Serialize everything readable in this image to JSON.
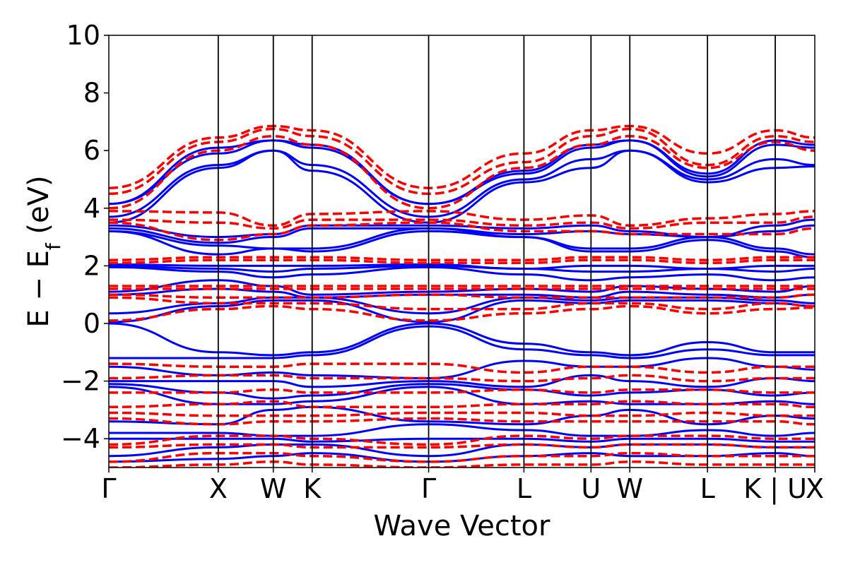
{
  "chart_data": {
    "type": "line",
    "title": "",
    "xlabel": "Wave Vector",
    "ylabel": {
      "prefix": "E − E",
      "subscript": "f",
      "suffix": " (eV)"
    },
    "ylim": [
      -5,
      10
    ],
    "yticks": [
      {
        "value": -4,
        "label": "−4"
      },
      {
        "value": -2,
        "label": "−2"
      },
      {
        "value": 0,
        "label": "0"
      },
      {
        "value": 2,
        "label": "2"
      },
      {
        "value": 4,
        "label": "4"
      },
      {
        "value": 6,
        "label": "6"
      },
      {
        "value": 8,
        "label": "8"
      },
      {
        "value": 10,
        "label": "10"
      }
    ],
    "xlim": [
      0,
      1
    ],
    "kpoints": [
      {
        "pos": 0.0,
        "label": "Γ"
      },
      {
        "pos": 0.155,
        "label": "X"
      },
      {
        "pos": 0.233,
        "label": "W"
      },
      {
        "pos": 0.288,
        "label": "K"
      },
      {
        "pos": 0.453,
        "label": "Γ"
      },
      {
        "pos": 0.588,
        "label": "L"
      },
      {
        "pos": 0.683,
        "label": "U"
      },
      {
        "pos": 0.738,
        "label": "W"
      },
      {
        "pos": 0.848,
        "label": "L"
      },
      {
        "pos": 0.944,
        "label": "K | U"
      },
      {
        "pos": 1.0,
        "label": "X"
      }
    ],
    "grid": false,
    "legend": "none",
    "series": [
      {
        "style": "solid",
        "color": "#0000ff",
        "bands": [
          [
            4.15,
            6.1,
            6.35,
            6.2,
            4.15,
            5.3,
            6.2,
            6.35,
            5.2,
            6.35,
            6.2
          ],
          [
            4.15,
            5.9,
            6.35,
            6.1,
            4.15,
            5.2,
            6.1,
            6.35,
            5.1,
            6.2,
            6.1
          ],
          [
            3.7,
            5.5,
            6.0,
            5.5,
            3.7,
            5.0,
            5.7,
            6.0,
            5.0,
            5.7,
            5.5
          ],
          [
            3.5,
            5.4,
            6.0,
            5.3,
            3.5,
            4.9,
            5.4,
            6.0,
            4.9,
            5.4,
            5.45
          ],
          [
            3.4,
            3.0,
            3.1,
            3.4,
            3.4,
            3.3,
            3.4,
            3.2,
            3.0,
            3.4,
            3.6
          ],
          [
            3.3,
            2.8,
            3.0,
            3.3,
            3.3,
            3.1,
            3.2,
            3.1,
            3.0,
            3.2,
            3.4
          ],
          [
            3.2,
            2.7,
            2.6,
            2.6,
            3.3,
            3.0,
            2.6,
            2.6,
            3.0,
            2.6,
            2.4
          ],
          [
            3.2,
            2.4,
            2.6,
            2.5,
            3.2,
            3.0,
            2.5,
            2.5,
            2.9,
            2.5,
            2.3
          ],
          [
            2.05,
            2.0,
            2.0,
            2.0,
            2.05,
            1.9,
            2.0,
            2.0,
            1.9,
            2.0,
            2.0
          ],
          [
            2.0,
            1.9,
            1.8,
            1.9,
            2.0,
            1.9,
            1.8,
            1.8,
            1.9,
            1.8,
            1.9
          ],
          [
            1.95,
            1.8,
            1.6,
            1.7,
            1.95,
            1.7,
            1.5,
            1.6,
            1.7,
            1.5,
            1.6
          ],
          [
            1.1,
            1.5,
            1.3,
            1.0,
            1.1,
            1.2,
            1.1,
            1.3,
            1.2,
            1.1,
            1.3
          ],
          [
            1.0,
            1.2,
            1.1,
            0.9,
            1.0,
            1.0,
            0.9,
            1.1,
            1.0,
            0.9,
            1.0
          ],
          [
            0.35,
            0.7,
            0.9,
            0.9,
            0.35,
            0.9,
            0.8,
            0.9,
            0.9,
            0.8,
            0.7
          ],
          [
            0.05,
            0.6,
            0.8,
            0.8,
            0.05,
            0.8,
            0.7,
            0.8,
            0.8,
            0.7,
            0.6
          ],
          [
            0.0,
            -1.0,
            -1.1,
            -1.0,
            0.0,
            -0.7,
            -1.0,
            -1.1,
            -0.65,
            -1.0,
            -1.0
          ],
          [
            -1.2,
            -1.2,
            -1.2,
            -1.1,
            -0.1,
            -0.9,
            -1.1,
            -1.2,
            -0.9,
            -1.1,
            -1.1
          ],
          [
            -1.5,
            -1.8,
            -1.7,
            -1.8,
            -1.9,
            -1.3,
            -1.5,
            -1.5,
            -1.2,
            -1.5,
            -1.6
          ],
          [
            -2.0,
            -2.0,
            -2.0,
            -2.2,
            -2.0,
            -2.2,
            -1.8,
            -2.0,
            -2.2,
            -1.9,
            -2.0
          ],
          [
            -2.1,
            -2.4,
            -2.6,
            -2.5,
            -2.1,
            -2.3,
            -2.5,
            -2.4,
            -2.3,
            -2.5,
            -2.4
          ],
          [
            -2.2,
            -2.8,
            -2.8,
            -2.7,
            -2.2,
            -2.8,
            -2.7,
            -2.8,
            -2.8,
            -2.7,
            -2.8
          ],
          [
            -3.4,
            -3.5,
            -3.0,
            -2.9,
            -3.4,
            -3.5,
            -3.2,
            -3.0,
            -3.5,
            -3.2,
            -3.3
          ],
          [
            -3.8,
            -3.8,
            -3.9,
            -3.9,
            -3.5,
            -3.7,
            -3.9,
            -3.9,
            -3.7,
            -3.9,
            -3.8
          ],
          [
            -4.0,
            -4.0,
            -4.0,
            -4.1,
            -4.0,
            -4.0,
            -4.1,
            -4.0,
            -4.0,
            -4.1,
            -4.1
          ],
          [
            -4.6,
            -4.3,
            -4.2,
            -4.2,
            -4.6,
            -4.2,
            -4.3,
            -4.2,
            -4.2,
            -4.3,
            -4.3
          ],
          [
            -4.8,
            -4.7,
            -4.6,
            -4.5,
            -4.8,
            -4.6,
            -4.5,
            -4.6,
            -4.6,
            -4.5,
            -4.6
          ]
        ]
      },
      {
        "style": "dashed",
        "color": "#ff0000",
        "bands": [
          [
            4.7,
            6.45,
            6.85,
            6.7,
            4.7,
            5.9,
            6.7,
            6.85,
            5.9,
            6.7,
            6.45
          ],
          [
            4.5,
            6.3,
            6.75,
            6.5,
            4.5,
            5.6,
            6.5,
            6.75,
            5.5,
            6.5,
            6.3
          ],
          [
            4.0,
            6.0,
            6.5,
            6.2,
            4.0,
            5.4,
            6.2,
            6.5,
            5.4,
            6.3,
            6.0
          ],
          [
            3.9,
            3.85,
            3.4,
            3.8,
            3.9,
            3.6,
            3.75,
            3.4,
            3.65,
            3.8,
            3.9
          ],
          [
            3.6,
            3.5,
            3.3,
            3.6,
            3.6,
            3.4,
            3.5,
            3.3,
            3.5,
            3.5,
            3.7
          ],
          [
            3.5,
            2.9,
            3.1,
            3.4,
            3.5,
            3.2,
            3.2,
            3.1,
            3.1,
            3.1,
            3.3
          ],
          [
            2.2,
            2.3,
            2.3,
            2.3,
            2.2,
            2.2,
            2.3,
            2.3,
            2.2,
            2.3,
            2.3
          ],
          [
            2.1,
            2.2,
            2.2,
            2.2,
            2.1,
            2.1,
            2.2,
            2.2,
            2.1,
            2.2,
            2.2
          ],
          [
            1.3,
            1.3,
            1.3,
            1.3,
            1.3,
            1.3,
            1.3,
            1.3,
            1.3,
            1.3,
            1.3
          ],
          [
            1.2,
            1.2,
            1.2,
            1.2,
            1.2,
            1.2,
            1.2,
            1.2,
            1.2,
            1.2,
            1.2
          ],
          [
            1.0,
            0.9,
            0.9,
            0.9,
            1.0,
            0.9,
            0.9,
            0.9,
            0.9,
            0.9,
            1.0
          ],
          [
            0.9,
            0.7,
            0.7,
            0.7,
            0.5,
            0.5,
            0.7,
            0.7,
            0.5,
            0.7,
            0.6
          ],
          [
            0.1,
            0.5,
            0.6,
            0.5,
            0.1,
            0.35,
            0.5,
            0.6,
            0.35,
            0.5,
            0.55
          ],
          [
            -1.4,
            -1.5,
            -1.5,
            -1.4,
            -1.4,
            -1.7,
            -1.5,
            -1.5,
            -1.7,
            -1.5,
            -1.5
          ],
          [
            -1.9,
            -1.8,
            -1.8,
            -1.9,
            -1.9,
            -2.0,
            -1.9,
            -1.8,
            -2.0,
            -1.9,
            -1.9
          ],
          [
            -2.4,
            -2.4,
            -2.3,
            -2.4,
            -2.4,
            -2.3,
            -2.4,
            -2.3,
            -2.3,
            -2.4,
            -2.4
          ],
          [
            -2.9,
            -2.8,
            -2.7,
            -2.9,
            -2.9,
            -2.8,
            -2.8,
            -2.7,
            -2.8,
            -2.8,
            -2.9
          ],
          [
            -3.1,
            -3.2,
            -3.2,
            -3.2,
            -3.1,
            -3.1,
            -3.2,
            -3.2,
            -3.1,
            -3.2,
            -3.2
          ],
          [
            -3.3,
            -3.5,
            -3.4,
            -3.4,
            -3.3,
            -3.4,
            -3.4,
            -3.4,
            -3.4,
            -3.4,
            -3.5
          ],
          [
            -4.2,
            -3.9,
            -3.9,
            -4.0,
            -4.2,
            -3.9,
            -4.0,
            -3.9,
            -3.9,
            -4.0,
            -4.0
          ],
          [
            -4.3,
            -4.2,
            -4.2,
            -4.3,
            -4.3,
            -4.2,
            -4.3,
            -4.2,
            -4.2,
            -4.3,
            -4.3
          ],
          [
            -4.8,
            -4.5,
            -4.5,
            -4.6,
            -4.8,
            -4.6,
            -4.6,
            -4.5,
            -4.6,
            -4.6,
            -4.6
          ],
          [
            -5.0,
            -4.9,
            -4.8,
            -4.9,
            -5.0,
            -4.9,
            -4.9,
            -4.8,
            -4.9,
            -4.9,
            -4.9
          ]
        ]
      }
    ]
  }
}
